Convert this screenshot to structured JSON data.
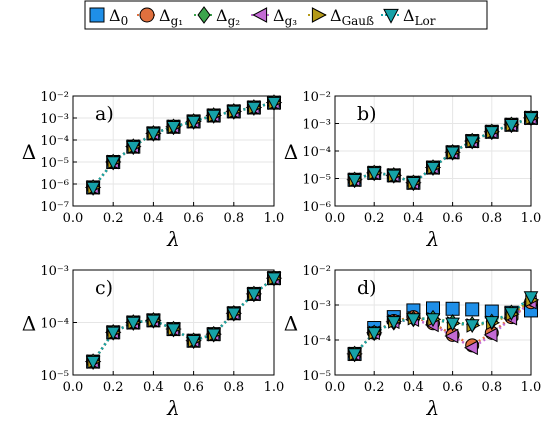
{
  "legend": {
    "entries": [
      {
        "base": "Δ",
        "sub": "0",
        "marker": "square",
        "color": "#1f8fe8",
        "line": "none"
      },
      {
        "base": "Δ",
        "sub": "g₁",
        "marker": "circle",
        "color": "#e0703e",
        "line": "dot"
      },
      {
        "base": "Δ",
        "sub": "g₂",
        "marker": "diamond",
        "color": "#3da44d",
        "line": "dot"
      },
      {
        "base": "Δ",
        "sub": "g₃",
        "marker": "triangle-left",
        "color": "#c36ad4",
        "line": "dot"
      },
      {
        "base": "Δ",
        "sub": "Gauß",
        "marker": "triangle-right",
        "color": "#b59a17",
        "line": "dot"
      },
      {
        "base": "Δ",
        "sub": "Lor",
        "marker": "triangle-down",
        "color": "#16a2a8",
        "line": "dot"
      }
    ]
  },
  "chart_data": [
    {
      "type": "scatter",
      "panel_label": "a)",
      "xlabel": "λ",
      "ylabel": "Δ",
      "yscale": "log",
      "xlim": [
        0.0,
        1.0
      ],
      "ylim": [
        1e-07,
        0.01
      ],
      "xticks": [
        "0.0",
        "0.2",
        "0.4",
        "0.6",
        "0.8",
        "1.0"
      ],
      "yticks": [
        "10⁻⁷",
        "10⁻⁶",
        "10⁻⁵",
        "10⁻⁴",
        "10⁻³",
        "10⁻²"
      ],
      "x": [
        0.1,
        0.2,
        0.3,
        0.4,
        0.5,
        0.6,
        0.7,
        0.8,
        0.9,
        1.0
      ],
      "series": [
        {
          "values": [
            7e-07,
            1e-05,
            5e-05,
            0.0002,
            0.0004,
            0.0007,
            0.0013,
            0.002,
            0.003,
            0.005
          ]
        },
        {
          "values": [
            7e-07,
            1e-05,
            5e-05,
            0.0002,
            0.0004,
            0.0007,
            0.0013,
            0.002,
            0.003,
            0.005
          ]
        },
        {
          "values": [
            7e-07,
            1e-05,
            5e-05,
            0.0002,
            0.0004,
            0.0007,
            0.0013,
            0.002,
            0.003,
            0.005
          ]
        },
        {
          "values": [
            7e-07,
            1e-05,
            5e-05,
            0.0002,
            0.0004,
            0.0007,
            0.0013,
            0.002,
            0.003,
            0.005
          ]
        },
        {
          "values": [
            7e-07,
            1e-05,
            5e-05,
            0.0002,
            0.0004,
            0.0007,
            0.0013,
            0.002,
            0.003,
            0.005
          ]
        },
        {
          "values": [
            7e-07,
            1e-05,
            5e-05,
            0.0002,
            0.0004,
            0.0007,
            0.0013,
            0.002,
            0.003,
            0.005
          ]
        }
      ]
    },
    {
      "type": "scatter",
      "panel_label": "b)",
      "xlabel": "λ",
      "ylabel": "Δ",
      "yscale": "log",
      "xlim": [
        0.0,
        1.0
      ],
      "ylim": [
        1e-06,
        0.01
      ],
      "xticks": [
        "0.0",
        "0.2",
        "0.4",
        "0.6",
        "0.8",
        "1.0"
      ],
      "yticks": [
        "10⁻⁶",
        "10⁻⁵",
        "10⁻⁴",
        "10⁻³",
        "10⁻²"
      ],
      "x": [
        0.1,
        0.2,
        0.3,
        0.4,
        0.5,
        0.6,
        0.7,
        0.8,
        0.9,
        1.0
      ],
      "series": [
        {
          "values": [
            9e-06,
            1.6e-05,
            1.3e-05,
            7e-06,
            2.5e-05,
            9e-05,
            0.00023,
            0.0005,
            0.0009,
            0.0016
          ]
        },
        {
          "values": [
            9e-06,
            1.6e-05,
            1.3e-05,
            7e-06,
            2.5e-05,
            9e-05,
            0.00023,
            0.0005,
            0.0009,
            0.0016
          ]
        },
        {
          "values": [
            9e-06,
            1.6e-05,
            1.3e-05,
            7e-06,
            2.5e-05,
            9e-05,
            0.00023,
            0.0005,
            0.0009,
            0.0016
          ]
        },
        {
          "values": [
            9e-06,
            1.6e-05,
            1.3e-05,
            7e-06,
            2.5e-05,
            9e-05,
            0.00023,
            0.0005,
            0.0009,
            0.0016
          ]
        },
        {
          "values": [
            9e-06,
            1.6e-05,
            1.3e-05,
            7e-06,
            2.5e-05,
            9e-05,
            0.00023,
            0.0005,
            0.0009,
            0.0016
          ]
        },
        {
          "values": [
            9e-06,
            1.6e-05,
            1.3e-05,
            7e-06,
            2.5e-05,
            9e-05,
            0.00023,
            0.0005,
            0.0009,
            0.0016
          ]
        }
      ]
    },
    {
      "type": "scatter",
      "panel_label": "c)",
      "xlabel": "λ",
      "ylabel": "Δ",
      "yscale": "log",
      "xlim": [
        0.0,
        1.0
      ],
      "ylim": [
        1e-05,
        0.001
      ],
      "xticks": [
        "0.0",
        "0.2",
        "0.4",
        "0.6",
        "0.8",
        "1.0"
      ],
      "yticks": [
        "10⁻⁵",
        "10⁻⁴",
        "10⁻³"
      ],
      "x": [
        0.1,
        0.2,
        0.3,
        0.4,
        0.5,
        0.6,
        0.7,
        0.8,
        0.9,
        1.0
      ],
      "series": [
        {
          "values": [
            1.8e-05,
            6.5e-05,
            0.0001,
            0.00011,
            7.5e-05,
            4.5e-05,
            6e-05,
            0.00015,
            0.00035,
            0.0007
          ]
        },
        {
          "values": [
            1.8e-05,
            6.5e-05,
            0.0001,
            0.00011,
            7.5e-05,
            4.5e-05,
            6e-05,
            0.00015,
            0.00035,
            0.0007
          ]
        },
        {
          "values": [
            1.8e-05,
            6.5e-05,
            0.0001,
            0.00011,
            7.5e-05,
            4.5e-05,
            6e-05,
            0.00015,
            0.00035,
            0.0007
          ]
        },
        {
          "values": [
            1.8e-05,
            6.5e-05,
            0.0001,
            0.00011,
            7.5e-05,
            4.5e-05,
            6e-05,
            0.00015,
            0.00035,
            0.0007
          ]
        },
        {
          "values": [
            1.8e-05,
            6.5e-05,
            0.0001,
            0.00011,
            7.5e-05,
            4.5e-05,
            6e-05,
            0.00015,
            0.00035,
            0.0007
          ]
        },
        {
          "values": [
            1.8e-05,
            6.5e-05,
            0.0001,
            0.00011,
            7.5e-05,
            4.5e-05,
            6e-05,
            0.00015,
            0.00035,
            0.0007
          ]
        }
      ]
    },
    {
      "type": "scatter",
      "panel_label": "d)",
      "xlabel": "λ",
      "ylabel": "Δ",
      "yscale": "log",
      "xlim": [
        0.0,
        1.0
      ],
      "ylim": [
        1e-05,
        0.01
      ],
      "xticks": [
        "0.0",
        "0.2",
        "0.4",
        "0.6",
        "0.8",
        "1.0"
      ],
      "yticks": [
        "10⁻⁵",
        "10⁻⁴",
        "10⁻³",
        "10⁻²"
      ],
      "x": [
        0.1,
        0.2,
        0.3,
        0.4,
        0.5,
        0.6,
        0.7,
        0.8,
        0.9,
        1.0
      ],
      "series": [
        {
          "values": [
            4e-05,
            0.00022,
            0.00045,
            0.0007,
            0.0008,
            0.00078,
            0.00075,
            0.00065,
            0.0006,
            0.0007
          ]
        },
        {
          "values": [
            4e-05,
            0.00016,
            0.00035,
            0.00045,
            0.0003,
            0.00014,
            7e-05,
            0.00016,
            0.00045,
            0.0012
          ]
        },
        {
          "values": [
            4e-05,
            0.00016,
            0.00032,
            0.0004,
            0.00042,
            0.00032,
            0.00028,
            0.00033,
            0.0006,
            0.0015
          ]
        },
        {
          "values": [
            4e-05,
            0.00016,
            0.00033,
            0.00038,
            0.00027,
            0.00013,
            6e-05,
            0.00014,
            0.00042,
            0.0012
          ]
        },
        {
          "values": [
            4e-05,
            0.00016,
            0.00034,
            0.00042,
            0.00039,
            0.0003,
            0.00026,
            0.00031,
            0.00055,
            0.0014
          ]
        },
        {
          "values": [
            4e-05,
            0.00016,
            0.00033,
            0.0004,
            0.0004,
            0.0003,
            0.00027,
            0.00033,
            0.0006,
            0.0017
          ]
        }
      ]
    }
  ]
}
